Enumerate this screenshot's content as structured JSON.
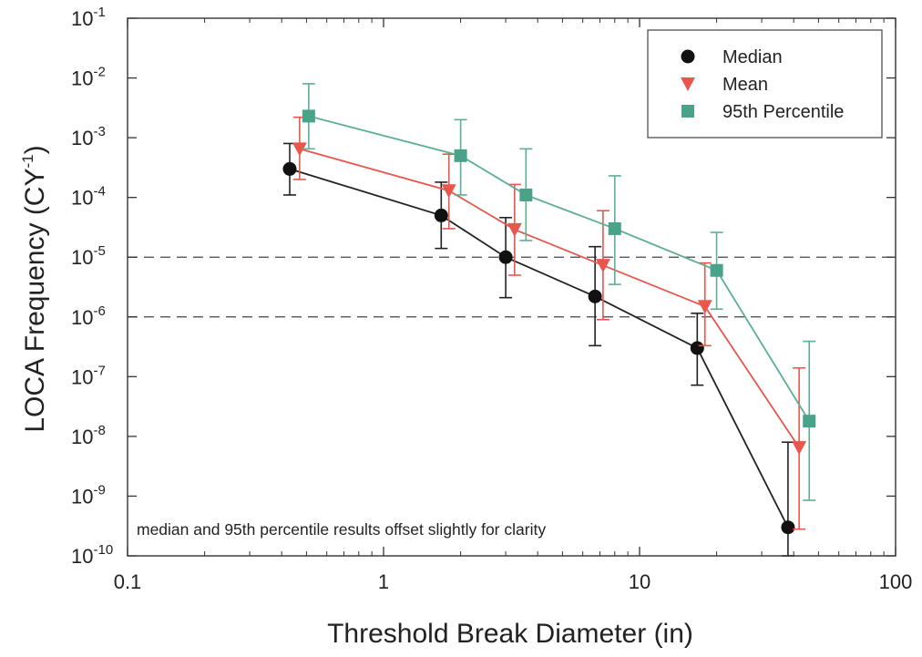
{
  "chart_data": {
    "type": "line",
    "x_scale": "log",
    "y_scale": "log",
    "xlabel": "Threshold Break Diameter (in)",
    "ylabel": "LOCA Frequency (CY",
    "ylabel_sup": "-1",
    "ylabel_close": ")",
    "xlim": [
      0.1,
      100
    ],
    "ylim": [
      1e-10,
      0.1
    ],
    "x_ticks": [
      {
        "value": 0.1,
        "label": "0.1"
      },
      {
        "value": 1,
        "label": "1"
      },
      {
        "value": 10,
        "label": "10"
      },
      {
        "value": 100,
        "label": "100"
      }
    ],
    "y_ticks": [
      {
        "value": 0.1,
        "base": "10",
        "exp": "-1"
      },
      {
        "value": 0.01,
        "base": "10",
        "exp": "-2"
      },
      {
        "value": 0.001,
        "base": "10",
        "exp": "-3"
      },
      {
        "value": 0.0001,
        "base": "10",
        "exp": "-4"
      },
      {
        "value": 1e-05,
        "base": "10",
        "exp": "-5"
      },
      {
        "value": 1e-06,
        "base": "10",
        "exp": "-6"
      },
      {
        "value": 1e-07,
        "base": "10",
        "exp": "-7"
      },
      {
        "value": 1e-08,
        "base": "10",
        "exp": "-8"
      },
      {
        "value": 1e-09,
        "base": "10",
        "exp": "-9"
      },
      {
        "value": 1e-10,
        "base": "10",
        "exp": "-10"
      }
    ],
    "reference_lines": [
      1e-05,
      1e-06
    ],
    "legend_position": "top-right",
    "annotation": "median and 95th percentile results offset slightly for clarity",
    "series": [
      {
        "name": "Median",
        "marker": "circle",
        "color": "#111111",
        "line_color": "#222222",
        "points": [
          {
            "x": 0.43,
            "y": 0.0003,
            "lo": 0.00011,
            "hi": 0.0008
          },
          {
            "x": 1.68,
            "y": 5e-05,
            "lo": 1.4e-05,
            "hi": 0.00018
          },
          {
            "x": 3.0,
            "y": 1e-05,
            "lo": 2.1e-06,
            "hi": 4.6e-05
          },
          {
            "x": 6.7,
            "y": 2.2e-06,
            "lo": 3.3e-07,
            "hi": 1.5e-05
          },
          {
            "x": 16.8,
            "y": 3e-07,
            "lo": 7.2e-08,
            "hi": 1.15e-06
          },
          {
            "x": 38.0,
            "y": 3e-10,
            "lo": 1e-10,
            "hi": 8e-09
          }
        ]
      },
      {
        "name": "Mean",
        "marker": "triangle-down",
        "color": "#e8564c",
        "line_color": "#e8564c",
        "points": [
          {
            "x": 0.47,
            "y": 0.00065,
            "lo": 0.0002,
            "hi": 0.0022
          },
          {
            "x": 1.8,
            "y": 0.00013,
            "lo": 3e-05,
            "hi": 0.00053
          },
          {
            "x": 3.25,
            "y": 2.9e-05,
            "lo": 5e-06,
            "hi": 0.000165
          },
          {
            "x": 7.2,
            "y": 7.3e-06,
            "lo": 9e-07,
            "hi": 6e-05
          },
          {
            "x": 18.0,
            "y": 1.5e-06,
            "lo": 3.3e-07,
            "hi": 8e-06
          },
          {
            "x": 42.0,
            "y": 6.5e-09,
            "lo": 2.8e-10,
            "hi": 1.4e-07
          }
        ]
      },
      {
        "name": "95th Percentile",
        "marker": "square",
        "color": "#4aa388",
        "line_color": "#5dae95",
        "points": [
          {
            "x": 0.51,
            "y": 0.0023,
            "lo": 0.00065,
            "hi": 0.008
          },
          {
            "x": 2.0,
            "y": 0.0005,
            "lo": 0.00011,
            "hi": 0.002
          },
          {
            "x": 3.6,
            "y": 0.00011,
            "lo": 1.9e-05,
            "hi": 0.00065
          },
          {
            "x": 8.0,
            "y": 3e-05,
            "lo": 3.5e-06,
            "hi": 0.00023
          },
          {
            "x": 20.0,
            "y": 6e-06,
            "lo": 1.35e-06,
            "hi": 2.6e-05
          },
          {
            "x": 46.0,
            "y": 1.8e-08,
            "lo": 8.5e-10,
            "hi": 3.9e-07
          }
        ]
      }
    ]
  }
}
